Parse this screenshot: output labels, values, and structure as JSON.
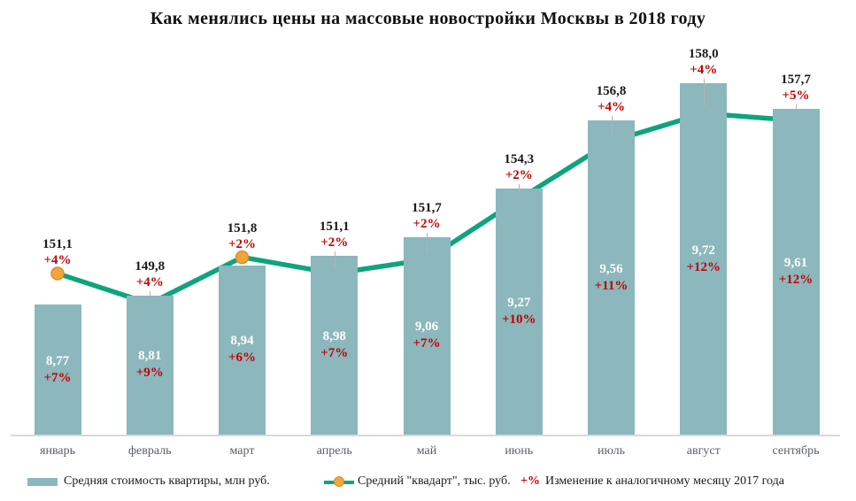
{
  "title": "Как менялись цены на массовые новостройки Москвы в 2018 году",
  "colors": {
    "bar": "#8bb7bd",
    "line": "#0ea47c",
    "marker": "#f3a53d",
    "marker_border": "#d98e2b",
    "percent_red": "#c00000",
    "value_black": "#1a1a1a",
    "month_gray": "#5a6068",
    "axis_gray": "#d9d9d9"
  },
  "chart_data": {
    "type": "bar",
    "subtype": "combo bar+line",
    "title": "Как менялись цены на массовые новостройки Москвы в 2018 году",
    "categories": [
      "январь",
      "февраль",
      "март",
      "апрель",
      "май",
      "июнь",
      "июль",
      "август",
      "сентябрь"
    ],
    "series": [
      {
        "name": "Средняя стоимость квартиры, млн руб.",
        "type": "bar",
        "values": [
          8.77,
          8.81,
          8.94,
          8.98,
          9.06,
          9.27,
          9.56,
          9.72,
          9.61
        ],
        "labels": [
          "8,77",
          "8,81",
          "8,94",
          "8,98",
          "9,06",
          "9,27",
          "9,56",
          "9,72",
          "9,61"
        ],
        "changes": [
          "+7%",
          "+9%",
          "+6%",
          "+7%",
          "+7%",
          "+10%",
          "+11%",
          "+12%",
          "+12%"
        ]
      },
      {
        "name": "Средний \"квадарт\", тыс. руб.",
        "type": "line",
        "values": [
          151.1,
          149.8,
          151.8,
          151.1,
          151.7,
          154.3,
          156.8,
          158.0,
          157.7
        ],
        "labels": [
          "151,1",
          "149,8",
          "151,8",
          "151,1",
          "151,7",
          "154,3",
          "156,8",
          "158,0",
          "157,7"
        ],
        "changes": [
          "+4%",
          "+4%",
          "+2%",
          "+2%",
          "+2%",
          "+2%",
          "+4%",
          "+4%",
          "+5%"
        ]
      }
    ],
    "annotation": "+% Изменение к аналогичному месяцу 2017 года",
    "layout_hints": {
      "legend_position": "bottom",
      "gridlines": false,
      "value_axes_hidden": true,
      "bar_value_labels": "inside, white value + red change",
      "line_value_labels": "above markers, black value + red change"
    }
  },
  "legend": {
    "bar_label": "Средняя стоимость квартиры, млн руб.",
    "line_label": "Средний \"квадарт\", тыс. руб.",
    "note_prefix": "+%",
    "note_text": "Изменение к аналогичному месяцу 2017 года"
  }
}
